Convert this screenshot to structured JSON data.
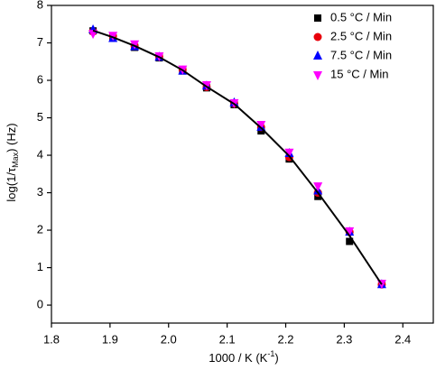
{
  "chart_data": {
    "type": "scatter",
    "xlabel": [
      "1000 / K (K",
      "-1",
      ")"
    ],
    "ylabel": [
      "log(1/τ",
      "Max",
      ") (Hz)"
    ],
    "x": [
      1.871,
      1.905,
      1.942,
      1.984,
      2.024,
      2.065,
      2.112,
      2.158,
      2.206,
      2.255,
      2.309,
      2.364
    ],
    "series": [
      {
        "name": "0.5 °C / Min",
        "color": "#000000",
        "marker": "square",
        "values": [
          7.32,
          7.15,
          6.88,
          6.6,
          6.25,
          5.8,
          5.35,
          4.65,
          3.9,
          2.9,
          1.7,
          0.58
        ]
      },
      {
        "name": "2.5 °C / Min",
        "color": "#e8000b",
        "marker": "circle",
        "values": [
          7.3,
          7.18,
          6.92,
          6.63,
          6.28,
          5.82,
          5.38,
          4.75,
          3.95,
          3.0,
          1.95,
          0.55
        ]
      },
      {
        "name": "7.5 °C / Min",
        "color": "#0000ff",
        "marker": "triangle-up",
        "values": [
          7.35,
          7.12,
          6.9,
          6.62,
          6.25,
          5.85,
          5.4,
          4.75,
          4.05,
          3.05,
          1.95,
          0.55
        ]
      },
      {
        "name": "15 °C / Min",
        "color": "#ff00ff",
        "marker": "triangle-down",
        "values": [
          7.25,
          7.2,
          6.97,
          6.65,
          6.3,
          5.88,
          5.4,
          4.82,
          4.08,
          3.18,
          1.98,
          0.58
        ]
      }
    ],
    "fit_line": {
      "color": "#000000",
      "values": [
        7.33,
        7.15,
        6.92,
        6.62,
        6.27,
        5.83,
        5.37,
        4.73,
        3.98,
        3.0,
        1.85,
        0.55
      ]
    },
    "xlim": [
      1.8,
      2.452
    ],
    "ylim": [
      -0.48,
      8
    ],
    "xticks": [
      {
        "value": 1.8,
        "label": "1.8"
      },
      {
        "value": 1.9,
        "label": "1.9"
      },
      {
        "value": 2.0,
        "label": "2.0"
      },
      {
        "value": 2.1,
        "label": "2.1"
      },
      {
        "value": 2.2,
        "label": "2.2"
      },
      {
        "value": 2.3,
        "label": "2.3"
      },
      {
        "value": 2.4,
        "label": "2.4"
      }
    ],
    "yticks": [
      0,
      1,
      2,
      3,
      4,
      5,
      6,
      7,
      8
    ],
    "legend": "top-right"
  }
}
